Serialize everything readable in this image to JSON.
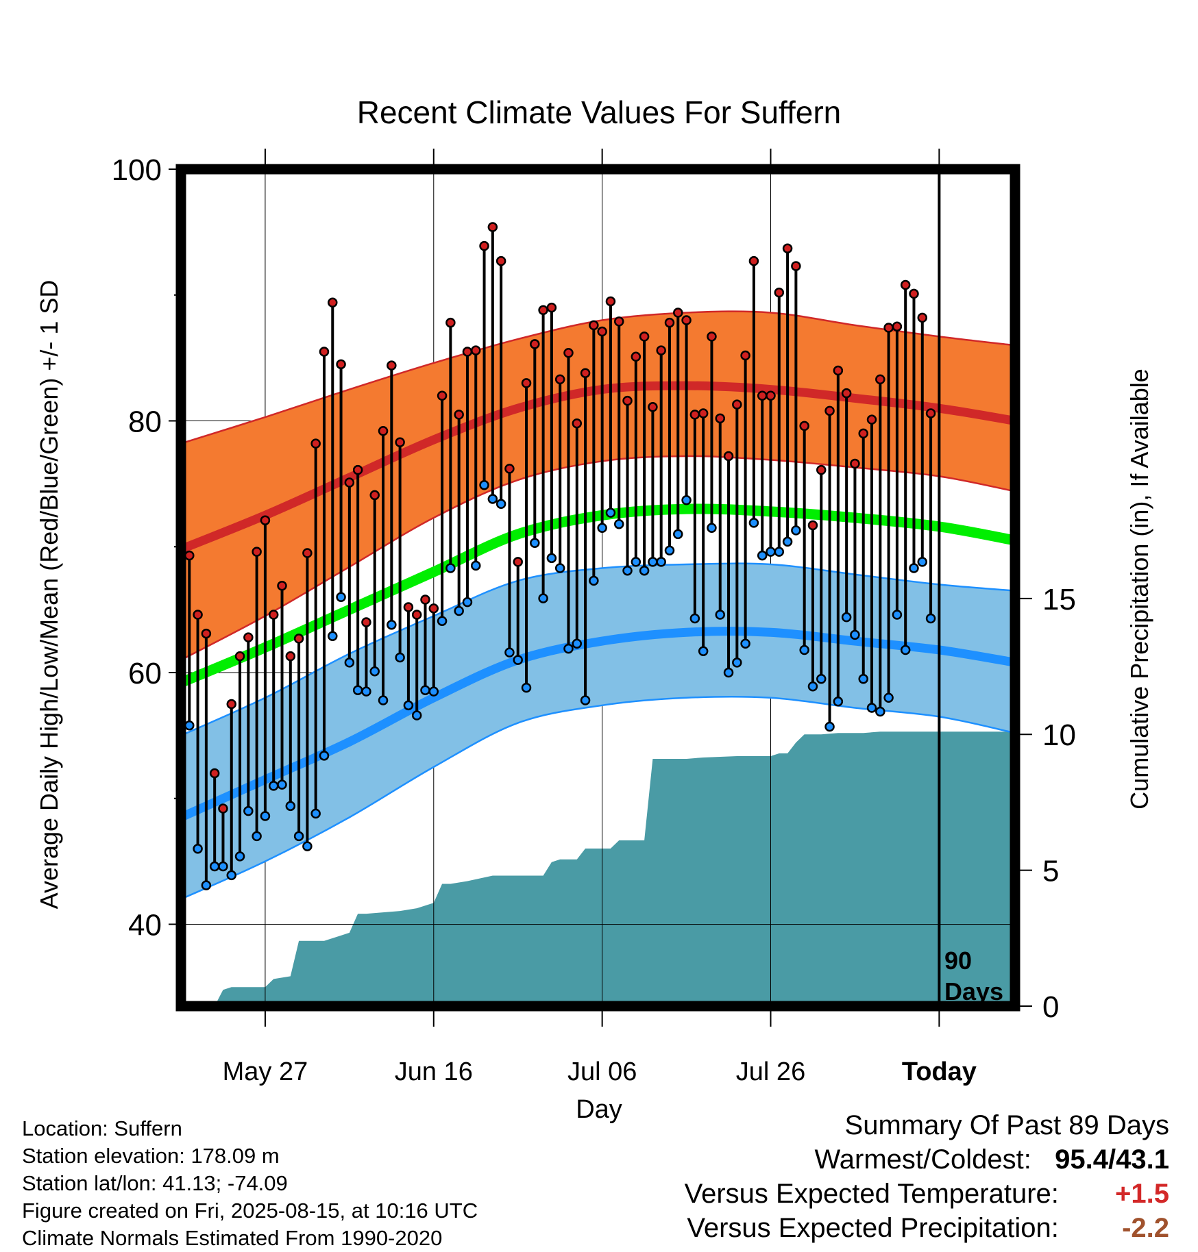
{
  "chart_data": {
    "type": "line",
    "title": "Recent Climate Values For Suffern",
    "xlabel": "Day",
    "ylabel": "Average Daily High/Low/Mean (Red/Blue/Green) +/- 1 SD",
    "y2label": "Cumulative Precipitation (in), If Available",
    "x_tick_labels": [
      "May 27",
      "Jun 16",
      "Jul 06",
      "Jul 26",
      "Today"
    ],
    "ylim": [
      33.5,
      100
    ],
    "yticks": [
      40,
      60,
      80,
      100
    ],
    "y2lim": [
      0,
      30.8
    ],
    "y2ticks": [
      0,
      5,
      10,
      15
    ],
    "today_marker_label": [
      "90",
      "Days"
    ],
    "grid": true,
    "normals": {
      "day": [
        -90,
        -80,
        -70,
        -60,
        -50,
        -40,
        -30,
        -20,
        -10,
        0,
        9
      ],
      "high_mean": [
        69.8,
        72.5,
        75.5,
        78.5,
        81.0,
        82.5,
        82.8,
        82.5,
        81.8,
        81.0,
        80.0
      ],
      "high_sd_upper": [
        78.2,
        80.3,
        82.5,
        84.6,
        86.5,
        88.0,
        88.6,
        88.6,
        87.6,
        86.7,
        86.0
      ],
      "high_sd_lower": [
        61.0,
        64.5,
        68.4,
        72.3,
        75.3,
        76.8,
        77.2,
        76.9,
        76.3,
        75.6,
        74.4
      ],
      "mean_normal": [
        59.2,
        62.0,
        65.0,
        68.0,
        71.0,
        72.5,
        73.0,
        72.8,
        72.3,
        71.6,
        70.5
      ],
      "low_mean": [
        48.5,
        51.5,
        54.5,
        58.0,
        61.0,
        62.5,
        63.2,
        63.2,
        62.5,
        61.8,
        60.8
      ],
      "low_sd_upper": [
        55.0,
        58.0,
        61.5,
        64.5,
        67.3,
        68.3,
        68.6,
        68.6,
        67.8,
        67.0,
        66.5
      ],
      "low_sd_lower": [
        42.0,
        45.0,
        48.5,
        52.5,
        56.0,
        57.4,
        58.0,
        58.0,
        57.2,
        56.5,
        55.2
      ]
    },
    "series": [
      {
        "name": "High",
        "color": "#d02020",
        "day": [
          -90,
          -89,
          -88,
          -87,
          -86,
          -85,
          -84,
          -83,
          -82,
          -81,
          -80,
          -79,
          -78,
          -77,
          -76,
          -75,
          -74,
          -73,
          -72,
          -71,
          -70,
          -69,
          -68,
          -67,
          -66,
          -65,
          -64,
          -63,
          -62,
          -61,
          -60,
          -59,
          -58,
          -57,
          -56,
          -55,
          -54,
          -53,
          -52,
          -51,
          -50,
          -49,
          -48,
          -47,
          -46,
          -45,
          -44,
          -43,
          -42,
          -41,
          -40,
          -39,
          -38,
          -37,
          -36,
          -35,
          -34,
          -33,
          -32,
          -31,
          -30,
          -29,
          -28,
          -27,
          -26,
          -25,
          -24,
          -23,
          -22,
          -21,
          -20,
          -19,
          -18,
          -17,
          -16,
          -15,
          -14,
          -13,
          -12,
          -11,
          -10,
          -9,
          -8,
          -7,
          -6,
          -5,
          -4,
          -3,
          -2,
          -1
        ],
        "values": [
          80.6,
          69.3,
          64.6,
          63.1,
          52.0,
          49.2,
          57.5,
          61.3,
          62.8,
          69.6,
          72.1,
          64.6,
          66.9,
          61.3,
          62.7,
          69.5,
          78.2,
          85.5,
          89.4,
          84.5,
          75.1,
          76.1,
          64.0,
          74.1,
          79.2,
          84.4,
          78.3,
          65.2,
          64.6,
          65.8,
          65.1,
          82.0,
          87.8,
          80.5,
          85.5,
          85.6,
          93.9,
          95.4,
          92.7,
          76.2,
          68.8,
          83.0,
          86.1,
          88.8,
          89.0,
          83.3,
          85.4,
          79.8,
          83.8,
          87.6,
          87.1,
          89.5,
          87.9,
          81.6,
          85.1,
          86.7,
          81.1,
          85.6,
          87.8,
          88.6,
          88.0,
          80.5,
          80.6,
          86.7,
          80.2,
          77.2,
          81.3,
          85.2,
          92.7,
          82.0,
          82.0,
          90.2,
          93.7,
          92.3,
          79.6,
          71.7,
          76.1,
          80.8,
          84.0,
          82.2,
          76.6,
          79.0,
          80.1,
          83.3,
          87.4,
          87.5,
          90.8,
          90.1,
          88.2,
          80.6
        ]
      },
      {
        "name": "Low",
        "color": "#1e90ff",
        "day": [
          -90,
          -89,
          -88,
          -87,
          -86,
          -85,
          -84,
          -83,
          -82,
          -81,
          -80,
          -79,
          -78,
          -77,
          -76,
          -75,
          -74,
          -73,
          -72,
          -71,
          -70,
          -69,
          -68,
          -67,
          -66,
          -65,
          -64,
          -63,
          -62,
          -61,
          -60,
          -59,
          -58,
          -57,
          -56,
          -55,
          -54,
          -53,
          -52,
          -51,
          -50,
          -49,
          -48,
          -47,
          -46,
          -45,
          -44,
          -43,
          -42,
          -41,
          -40,
          -39,
          -38,
          -37,
          -36,
          -35,
          -34,
          -33,
          -32,
          -31,
          -30,
          -29,
          -28,
          -27,
          -26,
          -25,
          -24,
          -23,
          -22,
          -21,
          -20,
          -19,
          -18,
          -17,
          -16,
          -15,
          -14,
          -13,
          -12,
          -11,
          -10,
          -9,
          -8,
          -7,
          -6,
          -5,
          -4,
          -3,
          -2,
          -1
        ],
        "values": [
          61.0,
          55.8,
          46.0,
          43.1,
          44.6,
          44.6,
          43.9,
          45.4,
          49.0,
          47.0,
          48.6,
          51.0,
          51.1,
          49.4,
          47.0,
          46.2,
          48.8,
          53.4,
          62.9,
          66.0,
          60.8,
          58.6,
          58.5,
          60.1,
          57.8,
          63.8,
          61.2,
          57.4,
          56.6,
          58.6,
          58.5,
          64.1,
          68.3,
          64.9,
          65.6,
          68.5,
          74.9,
          73.8,
          73.4,
          61.6,
          61.0,
          58.8,
          70.3,
          65.9,
          69.1,
          68.3,
          61.9,
          62.3,
          57.8,
          67.3,
          71.5,
          72.7,
          71.8,
          68.1,
          68.8,
          68.1,
          68.8,
          68.8,
          69.7,
          71.0,
          73.7,
          64.3,
          61.7,
          71.5,
          64.6,
          60.0,
          60.8,
          62.3,
          71.9,
          69.3,
          69.6,
          69.6,
          70.4,
          71.3,
          61.8,
          58.9,
          59.5,
          55.7,
          57.7,
          64.4,
          63.0,
          59.5,
          57.2,
          56.9,
          58.0,
          64.6,
          61.8,
          68.3,
          68.8,
          64.3
        ]
      }
    ],
    "precipitation": {
      "name": "Cumulative Precipitation",
      "color": "#4a9ba5",
      "day": [
        -90,
        -86,
        -85,
        -84,
        -80,
        -79,
        -77,
        -76,
        -73,
        -71,
        -70,
        -69,
        -68,
        -64,
        -62,
        -60,
        -59,
        -58,
        -56,
        -53,
        -49,
        -47,
        -46,
        -45,
        -43,
        -42,
        -39,
        -38,
        -35,
        -34,
        -30,
        -28,
        -24,
        -20,
        -19,
        -18,
        -17,
        -16,
        -14,
        -12,
        -9,
        -7,
        -4,
        -1,
        9
      ],
      "values": [
        0,
        0,
        0.6,
        0.7,
        0.7,
        1.0,
        1.1,
        2.4,
        2.4,
        2.6,
        2.7,
        3.4,
        3.4,
        3.5,
        3.6,
        3.8,
        4.5,
        4.5,
        4.6,
        4.8,
        4.8,
        4.8,
        5.3,
        5.4,
        5.4,
        5.8,
        5.8,
        6.1,
        6.1,
        9.1,
        9.1,
        9.15,
        9.2,
        9.2,
        9.3,
        9.3,
        9.7,
        10.0,
        10.0,
        10.05,
        10.05,
        10.1,
        10.1,
        10.1,
        10.1
      ]
    },
    "colors": {
      "high_band": "#f47a30",
      "high_line": "#d02828",
      "mean_line": "#00ee00",
      "low_band": "#82c0e6",
      "low_line": "#1e90ff",
      "frame": "#000000"
    }
  },
  "info": {
    "location": "Location: Suffern",
    "elevation": "Station elevation: 178.09 m",
    "latlon": "Station lat/lon: 41.13; -74.09",
    "created": "Figure created on Fri, 2025-08-15, at 10:16 UTC",
    "normals_period": "Climate Normals Estimated From 1990-2020"
  },
  "summary": {
    "title": "Summary Of Past 89 Days",
    "warm_cold_label": "Warmest/Coldest:",
    "warm_cold_value": "95.4/43.1",
    "temp_label": "Versus Expected Temperature:",
    "temp_value": "+1.5",
    "temp_color": "#d32828",
    "precip_label": "Versus Expected Precipitation:",
    "precip_value": "-2.2",
    "precip_color": "#a0522d"
  }
}
